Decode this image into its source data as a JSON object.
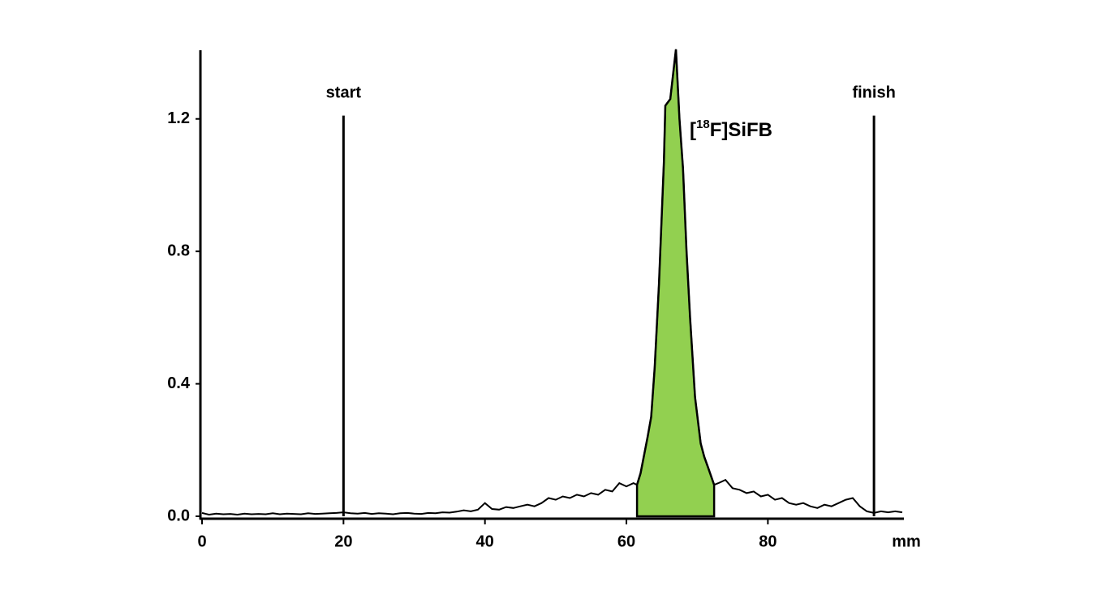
{
  "chart_data": {
    "type": "line",
    "xlabel": "mm",
    "x": [
      0,
      1,
      2,
      3,
      4,
      5,
      6,
      7,
      8,
      9,
      10,
      11,
      12,
      13,
      14,
      15,
      16,
      17,
      18,
      19,
      20,
      21,
      22,
      23,
      24,
      25,
      26,
      27,
      28,
      29,
      30,
      31,
      32,
      33,
      34,
      35,
      36,
      37,
      38,
      39,
      40,
      41,
      42,
      43,
      44,
      45,
      46,
      47,
      48,
      49,
      50,
      51,
      52,
      53,
      54,
      55,
      56,
      57,
      58,
      59,
      60,
      61,
      61.5,
      62,
      63,
      63.5,
      64,
      64.6,
      65.3,
      65.5,
      66.2,
      67,
      67.5,
      68,
      68.5,
      69,
      69.7,
      70.5,
      71,
      71.5,
      72.4,
      73,
      74,
      75,
      76,
      77,
      78,
      79,
      80,
      81,
      82,
      83,
      84,
      85,
      86,
      87,
      88,
      89,
      90,
      91,
      92,
      93,
      94,
      95,
      96,
      97,
      98,
      99
    ],
    "series": [
      {
        "color": "#000000",
        "values": [
          0.01,
          0.005,
          0.008,
          0.006,
          0.007,
          0.005,
          0.008,
          0.006,
          0.007,
          0.006,
          0.009,
          0.006,
          0.008,
          0.007,
          0.006,
          0.009,
          0.007,
          0.008,
          0.009,
          0.01,
          0.012,
          0.009,
          0.008,
          0.01,
          0.007,
          0.009,
          0.008,
          0.006,
          0.009,
          0.01,
          0.008,
          0.007,
          0.01,
          0.009,
          0.012,
          0.011,
          0.014,
          0.018,
          0.015,
          0.02,
          0.04,
          0.022,
          0.02,
          0.028,
          0.025,
          0.03,
          0.035,
          0.03,
          0.04,
          0.055,
          0.05,
          0.06,
          0.055,
          0.065,
          0.06,
          0.07,
          0.065,
          0.08,
          0.075,
          0.1,
          0.09,
          0.1,
          0.095,
          0.13,
          0.24,
          0.3,
          0.45,
          0.7,
          1.07,
          1.24,
          1.26,
          1.41,
          1.2,
          1.05,
          0.8,
          0.6,
          0.36,
          0.22,
          0.18,
          0.15,
          0.095,
          0.1,
          0.11,
          0.085,
          0.08,
          0.07,
          0.075,
          0.06,
          0.065,
          0.05,
          0.055,
          0.04,
          0.035,
          0.04,
          0.03,
          0.025,
          0.035,
          0.03,
          0.04,
          0.05,
          0.055,
          0.03,
          0.015,
          0.01,
          0.015,
          0.012,
          0.015,
          0.012
        ]
      }
    ],
    "fill_x": [
      61.5,
      72.4
    ],
    "fill_color": "#92d050",
    "peak_label": {
      "prefix": "[",
      "superscript": "18",
      "text": "F]SiFB"
    },
    "markers": [
      {
        "label": "start",
        "x": 20,
        "y": 1.21
      },
      {
        "label": "finish",
        "x": 95,
        "y": 1.21
      }
    ],
    "xlim": [
      0,
      99
    ],
    "xticks": [
      0,
      20,
      40,
      60,
      80
    ],
    "ylim": [
      0,
      1.4
    ],
    "yticks": [
      {
        "value": 0,
        "label": "0.0"
      },
      0.4,
      0.8,
      1.2
    ]
  }
}
